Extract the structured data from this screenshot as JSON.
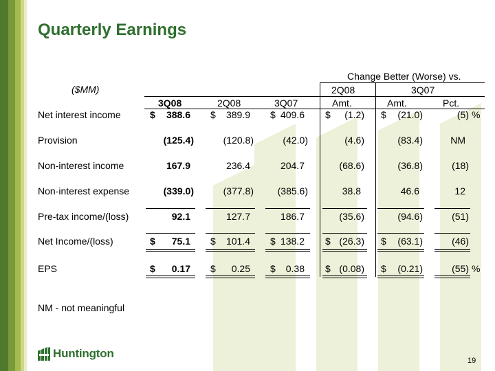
{
  "title": "Quarterly Earnings",
  "units_label": "($MM)",
  "header": {
    "group_label": "Change Better (Worse) vs.",
    "col_3q08": "3Q08",
    "col_2q08": "2Q08",
    "col_3q07": "3Q07",
    "sub_2q08": "2Q08",
    "sub_3q07": "3Q07",
    "amt_1": "Amt.",
    "amt_2": "Amt.",
    "pct": "Pct."
  },
  "rows": [
    {
      "label": "Net interest income",
      "v3q08": "388.6",
      "v2q08": "389.9",
      "v3q07": "409.6",
      "chg2q08": "(1.2)",
      "chg3q07": "(21.0)",
      "pct": "(5)",
      "dollar": "$",
      "pct_sign": "%"
    },
    {
      "label": "Provision",
      "v3q08": "(125.4)",
      "v2q08": "(120.8)",
      "v3q07": "(42.0)",
      "chg2q08": "(4.6)",
      "chg3q07": "(83.4)",
      "pct": "NM"
    },
    {
      "label": "Non-interest income",
      "v3q08": "167.9",
      "v2q08": "236.4",
      "v3q07": "204.7",
      "chg2q08": "(68.6)",
      "chg3q07": "(36.8)",
      "pct": "(18)"
    },
    {
      "label": "Non-interest expense",
      "v3q08": "(339.0)",
      "v2q08": "(377.8)",
      "v3q07": "(385.6)",
      "chg2q08": "38.8",
      "chg3q07": "46.6",
      "pct": "12"
    },
    {
      "label": "Pre-tax income/(loss)",
      "v3q08": "92.1",
      "v2q08": "127.7",
      "v3q07": "186.7",
      "chg2q08": "(35.6)",
      "chg3q07": "(94.6)",
      "pct": "(51)"
    },
    {
      "label": "Net Income/(loss)",
      "v3q08": "75.1",
      "v2q08": "101.4",
      "v3q07": "138.2",
      "chg2q08": "(26.3)",
      "chg3q07": "(63.1)",
      "pct": "(46)",
      "dollar": "$"
    },
    {
      "label": "EPS",
      "v3q08": "0.17",
      "v2q08": "0.25",
      "v3q07": "0.38",
      "chg2q08": "(0.08)",
      "chg3q07": "(0.21)",
      "pct": "(55)",
      "dollar": "$",
      "pct_sign": "%"
    }
  ],
  "footnote": "NM - not meaningful",
  "logo": {
    "text": "Huntington",
    "icon": "huntington-building-icon"
  },
  "page_number": "19",
  "colors": {
    "title": "#2f6f2f",
    "stripe_dark": "#4f7a2c",
    "watermark": "#eef1d9"
  }
}
